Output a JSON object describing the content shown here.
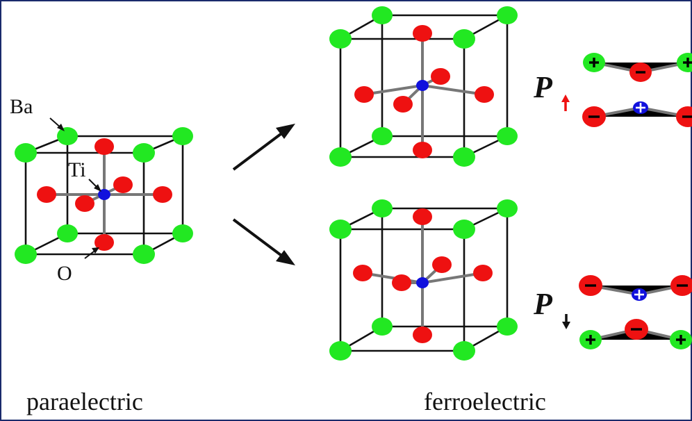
{
  "labels": {
    "paraelectric": "paraelectric",
    "ferroelectric": "ferroelectric",
    "ba": "Ba",
    "ti": "Ti",
    "o": "O",
    "p_up": "P",
    "p_down": "P"
  },
  "colors": {
    "ba_atom": "#22e822",
    "o_atom": "#ee1111",
    "ti_atom": "#1111dd",
    "cube_edges": "#111111",
    "bonds": "#777777",
    "arrow_up_indicator": "#ee1111",
    "arrow_down_indicator": "#111111",
    "frame_border": "#1a2a6c"
  },
  "icons": {
    "transition_arrows": "arrow-right-icon",
    "polarization_up": "arrow-up-icon",
    "polarization_down": "arrow-down-icon",
    "charge_signs": [
      "plus-icon",
      "minus-icon"
    ]
  }
}
